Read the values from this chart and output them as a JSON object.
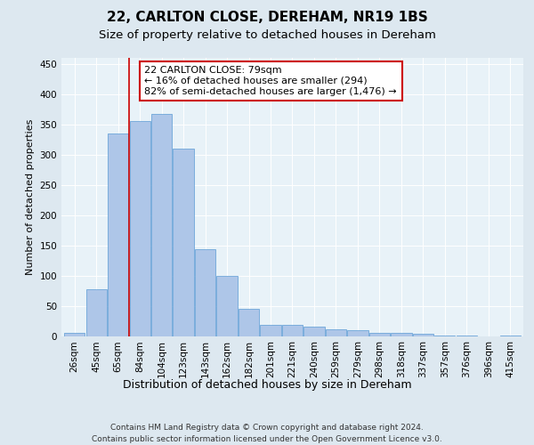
{
  "title": "22, CARLTON CLOSE, DEREHAM, NR19 1BS",
  "subtitle": "Size of property relative to detached houses in Dereham",
  "xlabel": "Distribution of detached houses by size in Dereham",
  "ylabel": "Number of detached properties",
  "categories": [
    "26sqm",
    "45sqm",
    "65sqm",
    "84sqm",
    "104sqm",
    "123sqm",
    "143sqm",
    "162sqm",
    "182sqm",
    "201sqm",
    "221sqm",
    "240sqm",
    "259sqm",
    "279sqm",
    "298sqm",
    "318sqm",
    "337sqm",
    "357sqm",
    "376sqm",
    "396sqm",
    "415sqm"
  ],
  "values": [
    5,
    77,
    335,
    355,
    368,
    310,
    143,
    99,
    45,
    19,
    18,
    15,
    11,
    10,
    5,
    5,
    3,
    1,
    1,
    0,
    1
  ],
  "bar_color": "#aec6e8",
  "bar_edgecolor": "#5b9bd5",
  "vline_x": 2.5,
  "vline_color": "#cc0000",
  "annotation_text": "22 CARLTON CLOSE: 79sqm\n← 16% of detached houses are smaller (294)\n82% of semi-detached houses are larger (1,476) →",
  "annotation_box_facecolor": "#ffffff",
  "annotation_box_edgecolor": "#cc0000",
  "ylim": [
    0,
    460
  ],
  "yticks": [
    0,
    50,
    100,
    150,
    200,
    250,
    300,
    350,
    400,
    450
  ],
  "bg_color": "#dde8f0",
  "plot_bg_color": "#e8f2f8",
  "footer_text": "Contains HM Land Registry data © Crown copyright and database right 2024.\nContains public sector information licensed under the Open Government Licence v3.0.",
  "title_fontsize": 11,
  "subtitle_fontsize": 9.5,
  "xlabel_fontsize": 9,
  "ylabel_fontsize": 8,
  "tick_fontsize": 7.5,
  "annotation_fontsize": 8,
  "footer_fontsize": 6.5
}
